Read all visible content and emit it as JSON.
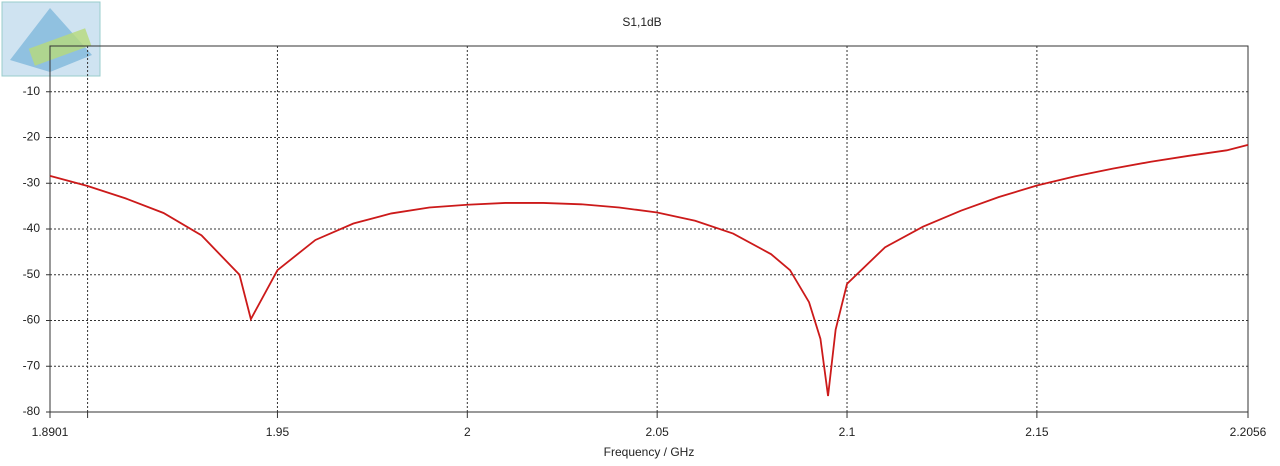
{
  "chart_data": {
    "type": "line",
    "title": "S1,1dB",
    "x_label": "Frequency / GHz",
    "x": [
      1.8901,
      1.9,
      1.91,
      1.92,
      1.93,
      1.94,
      1.943,
      1.95,
      1.96,
      1.97,
      1.98,
      1.99,
      2.0,
      2.01,
      2.02,
      2.03,
      2.04,
      2.05,
      2.06,
      2.07,
      2.08,
      2.085,
      2.09,
      2.093,
      2.095,
      2.097,
      2.1,
      2.11,
      2.12,
      2.13,
      2.14,
      2.15,
      2.16,
      2.17,
      2.18,
      2.19,
      2.2,
      2.2056
    ],
    "series": [
      {
        "name": "S1,1",
        "color": "#cc1a1a",
        "values": [
          -28.4,
          -30.6,
          -33.3,
          -36.5,
          -41.4,
          -50,
          -59.7,
          -49,
          -42.4,
          -38.8,
          -36.6,
          -35.3,
          -34.7,
          -34.3,
          -34.3,
          -34.6,
          -35.3,
          -36.4,
          -38.2,
          -41,
          -45.5,
          -49,
          -56,
          -64,
          -76.5,
          -62,
          -52,
          -44,
          -39.5,
          -36,
          -33,
          -30.5,
          -28.5,
          -26.8,
          -25.3,
          -24,
          -22.8,
          -21.6
        ]
      }
    ],
    "xlim": [
      1.8901,
      2.2056
    ],
    "xticks": [
      1.8901,
      {
        "value": 1.9,
        "label": null
      },
      1.95,
      2,
      2.05,
      2.1,
      2.15,
      2.2056
    ],
    "ylim": [
      -80,
      0
    ],
    "yticks": [
      -80,
      -70,
      -60,
      -50,
      -40,
      -30,
      -20,
      -10
    ],
    "grid": true
  }
}
